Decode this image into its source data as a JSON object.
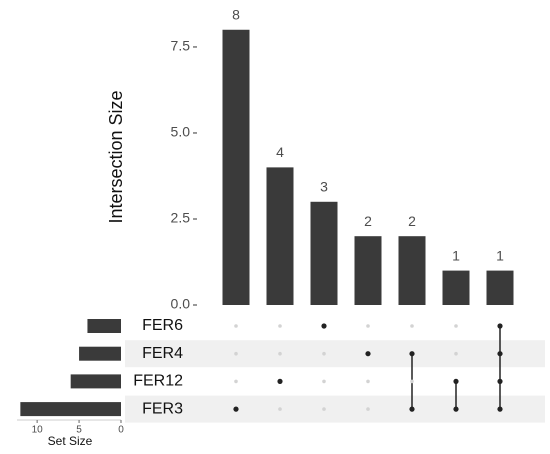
{
  "chart_data": {
    "type": "upset",
    "y_label": "Intersection Size",
    "values": [
      8,
      4,
      3,
      2,
      2,
      1,
      1
    ],
    "color": "#3a3a3a",
    "ylim": [
      0,
      8.4
    ],
    "yticks": [
      {
        "value": 0,
        "label": "0.0"
      },
      2.5,
      {
        "value": 5,
        "label": "5.0"
      },
      7.5
    ],
    "sets": [
      "FER6",
      "FER4",
      "FER12",
      "FER3"
    ],
    "set_sizes": [
      4,
      5,
      6,
      12
    ],
    "set_size_label": "Set Size",
    "set_xlim": [
      0,
      12.4
    ],
    "set_xticks": [
      10,
      5,
      0
    ],
    "intersections": [
      [
        3
      ],
      [
        2
      ],
      [
        0
      ],
      [
        1
      ],
      [
        1,
        3
      ],
      [
        2,
        3
      ],
      [
        0,
        1,
        2,
        3
      ]
    ]
  }
}
